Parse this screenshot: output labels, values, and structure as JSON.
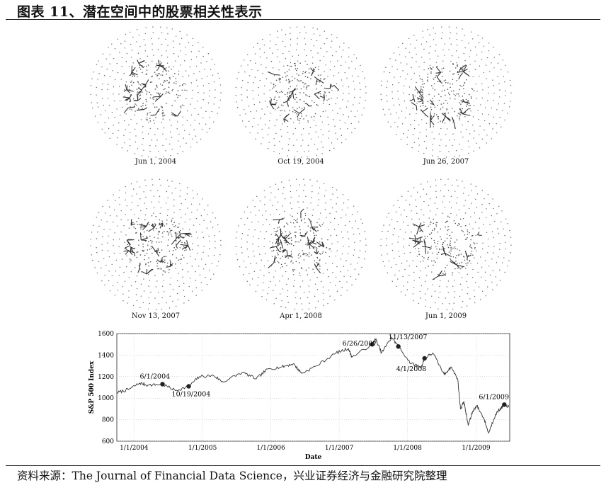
{
  "figure_title": "图表 11、潜在空间中的股票相关性表示",
  "panels": [
    {
      "caption": "Jun 1, 2004",
      "clusters": 14,
      "seed": 11
    },
    {
      "caption": "Oct 19, 2004",
      "clusters": 13,
      "seed": 23
    },
    {
      "caption": "Jun 26, 2007",
      "clusters": 16,
      "seed": 37
    },
    {
      "caption": "Nov 13, 2007",
      "clusters": 20,
      "seed": 41
    },
    {
      "caption": "Apr 1, 2008",
      "clusters": 18,
      "seed": 53
    },
    {
      "caption": "Jun 1, 2009",
      "clusters": 10,
      "seed": 67
    }
  ],
  "chart_data": {
    "type": "line",
    "xlabel": "Date",
    "ylabel": "S&P 500 Index",
    "ylim": [
      600,
      1600
    ],
    "yticks": [
      600,
      800,
      1000,
      1200,
      1400,
      1600
    ],
    "xlim": [
      "2003-10-01",
      "2009-06-30"
    ],
    "xticks": [
      "2004-01-01",
      "2005-01-01",
      "2006-01-01",
      "2007-01-01",
      "2008-01-01",
      "2009-01-01"
    ],
    "xtick_labels": [
      "1/1/2004",
      "1/1/2005",
      "1/1/2006",
      "1/1/2007",
      "1/1/2008",
      "1/1/2009"
    ],
    "grid": true,
    "series": [
      {
        "points": [
          [
            "2003-10-01",
            1050
          ],
          [
            "2003-12-01",
            1080
          ],
          [
            "2004-02-01",
            1140
          ],
          [
            "2004-03-15",
            1120
          ],
          [
            "2004-06-01",
            1130
          ],
          [
            "2004-08-10",
            1070
          ],
          [
            "2004-10-19",
            1110
          ],
          [
            "2004-12-15",
            1200
          ],
          [
            "2005-03-01",
            1210
          ],
          [
            "2005-04-20",
            1150
          ],
          [
            "2005-08-01",
            1240
          ],
          [
            "2005-10-15",
            1180
          ],
          [
            "2005-12-15",
            1270
          ],
          [
            "2006-03-01",
            1290
          ],
          [
            "2006-05-01",
            1320
          ],
          [
            "2006-06-15",
            1230
          ],
          [
            "2006-09-01",
            1300
          ],
          [
            "2006-12-15",
            1420
          ],
          [
            "2007-02-20",
            1460
          ],
          [
            "2007-03-10",
            1380
          ],
          [
            "2007-06-26",
            1500
          ],
          [
            "2007-07-15",
            1550
          ],
          [
            "2007-08-15",
            1420
          ],
          [
            "2007-10-09",
            1565
          ],
          [
            "2007-11-13",
            1480
          ],
          [
            "2008-01-20",
            1320
          ],
          [
            "2008-03-15",
            1290
          ],
          [
            "2008-04-01",
            1370
          ],
          [
            "2008-05-15",
            1420
          ],
          [
            "2008-07-15",
            1220
          ],
          [
            "2008-08-20",
            1290
          ],
          [
            "2008-09-25",
            1180
          ],
          [
            "2008-10-10",
            900
          ],
          [
            "2008-10-28",
            970
          ],
          [
            "2008-11-20",
            750
          ],
          [
            "2008-12-15",
            880
          ],
          [
            "2009-01-05",
            930
          ],
          [
            "2009-02-10",
            820
          ],
          [
            "2009-03-09",
            676
          ],
          [
            "2009-04-15",
            850
          ],
          [
            "2009-05-15",
            910
          ],
          [
            "2009-06-01",
            940
          ],
          [
            "2009-06-25",
            920
          ]
        ]
      }
    ],
    "annotations": [
      {
        "label": "6/1/2004",
        "date": "2004-06-01",
        "value": 1130
      },
      {
        "label": "10/19/2004",
        "date": "2004-10-19",
        "value": 1110
      },
      {
        "label": "6/26/2007",
        "date": "2007-06-26",
        "value": 1500
      },
      {
        "label": "11/13/2007",
        "date": "2007-11-13",
        "value": 1480
      },
      {
        "label": "4/1/2008",
        "date": "2008-04-01",
        "value": 1370
      },
      {
        "label": "6/1/2009",
        "date": "2009-06-01",
        "value": 940
      }
    ]
  },
  "source": "资料来源：The Journal of Financial Data Science，兴业证券经济与金融研究院整理"
}
